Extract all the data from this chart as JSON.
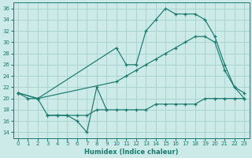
{
  "bg_color": "#cceae7",
  "grid_color": "#aad4d0",
  "line_color": "#1a7a6e",
  "xlabel": "Humidex (Indice chaleur)",
  "yticks": [
    14,
    16,
    18,
    20,
    22,
    24,
    26,
    28,
    30,
    32,
    34,
    36
  ],
  "xticks": [
    0,
    1,
    2,
    3,
    4,
    5,
    6,
    7,
    8,
    9,
    10,
    11,
    12,
    13,
    14,
    15,
    16,
    17,
    18,
    19,
    20,
    21,
    22,
    23
  ],
  "xlim": [
    -0.5,
    23.5
  ],
  "ylim": [
    13,
    37
  ],
  "line1_x": [
    0,
    1,
    2,
    3,
    4,
    5,
    6,
    7,
    8,
    9
  ],
  "line1_y": [
    21,
    20,
    20,
    17,
    17,
    17,
    16,
    14,
    22,
    18
  ],
  "line2_x": [
    3,
    4,
    5,
    6,
    7,
    8,
    9,
    10,
    11,
    12,
    13,
    14,
    15,
    16,
    17,
    18,
    19,
    20,
    21,
    22,
    23
  ],
  "line2_y": [
    17,
    17,
    17,
    17,
    17,
    18,
    18,
    18,
    18,
    18,
    18,
    19,
    19,
    19,
    19,
    19,
    20,
    20,
    20,
    20,
    20
  ],
  "line3_x": [
    0,
    2,
    10,
    11,
    12,
    13,
    14,
    15,
    16,
    17,
    18,
    19,
    20,
    21,
    22,
    23
  ],
  "line3_y": [
    21,
    20,
    29,
    26,
    26,
    32,
    34,
    36,
    35,
    35,
    35,
    34,
    31,
    26,
    22,
    20
  ],
  "line4_x": [
    0,
    2,
    10,
    11,
    12,
    13,
    14,
    15,
    16,
    17,
    18,
    19,
    20,
    21,
    22,
    23
  ],
  "line4_y": [
    21,
    20,
    23,
    24,
    25,
    26,
    27,
    28,
    29,
    30,
    31,
    31,
    30,
    25,
    22,
    21
  ]
}
